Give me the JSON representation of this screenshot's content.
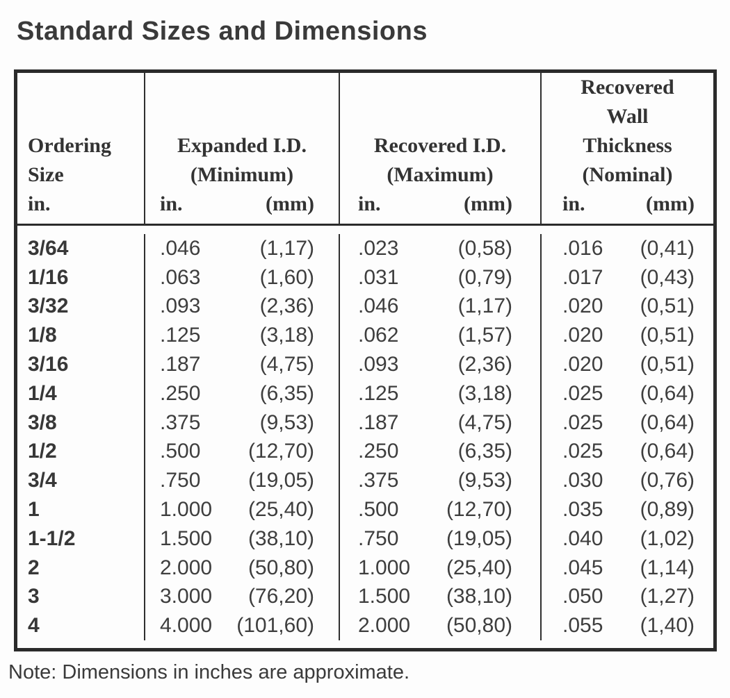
{
  "page": {
    "title": "Standard Sizes and Dimensions",
    "note": "Note: Dimensions in inches are approximate."
  },
  "colors": {
    "text": "#3a3a3a",
    "border": "#2b2b2b",
    "background": "#fdfdfd"
  },
  "table": {
    "columns": [
      {
        "id": "ordering-size",
        "title_lines": [
          "Ordering",
          "Size"
        ],
        "unit_in": "in.",
        "unit_mm": ""
      },
      {
        "id": "expanded-id",
        "title_lines": [
          "Expanded I.D.",
          "(Minimum)"
        ],
        "unit_in": "in.",
        "unit_mm": "(mm)"
      },
      {
        "id": "recovered-id",
        "title_lines": [
          "Recovered I.D.",
          "(Maximum)"
        ],
        "unit_in": "in.",
        "unit_mm": "(mm)"
      },
      {
        "id": "recovered-wall",
        "title_lines": [
          "Recovered",
          "Wall",
          "Thickness",
          "(Nominal)"
        ],
        "unit_in": "in.",
        "unit_mm": "(mm)"
      }
    ],
    "rows": [
      {
        "size": "3/64",
        "expanded_in": ".046",
        "expanded_mm": "(1,17)",
        "recovered_in": ".023",
        "recovered_mm": "(0,58)",
        "wall_in": ".016",
        "wall_mm": "(0,41)"
      },
      {
        "size": "1/16",
        "expanded_in": ".063",
        "expanded_mm": "(1,60)",
        "recovered_in": ".031",
        "recovered_mm": "(0,79)",
        "wall_in": ".017",
        "wall_mm": "(0,43)"
      },
      {
        "size": "3/32",
        "expanded_in": ".093",
        "expanded_mm": "(2,36)",
        "recovered_in": ".046",
        "recovered_mm": "(1,17)",
        "wall_in": ".020",
        "wall_mm": "(0,51)"
      },
      {
        "size": "1/8",
        "expanded_in": ".125",
        "expanded_mm": "(3,18)",
        "recovered_in": ".062",
        "recovered_mm": "(1,57)",
        "wall_in": ".020",
        "wall_mm": "(0,51)"
      },
      {
        "size": "3/16",
        "expanded_in": ".187",
        "expanded_mm": "(4,75)",
        "recovered_in": ".093",
        "recovered_mm": "(2,36)",
        "wall_in": ".020",
        "wall_mm": "(0,51)"
      },
      {
        "size": "1/4",
        "expanded_in": ".250",
        "expanded_mm": "(6,35)",
        "recovered_in": ".125",
        "recovered_mm": "(3,18)",
        "wall_in": ".025",
        "wall_mm": "(0,64)"
      },
      {
        "size": "3/8",
        "expanded_in": ".375",
        "expanded_mm": "(9,53)",
        "recovered_in": ".187",
        "recovered_mm": "(4,75)",
        "wall_in": ".025",
        "wall_mm": "(0,64)"
      },
      {
        "size": "1/2",
        "expanded_in": ".500",
        "expanded_mm": "(12,70)",
        "recovered_in": ".250",
        "recovered_mm": "(6,35)",
        "wall_in": ".025",
        "wall_mm": "(0,64)"
      },
      {
        "size": "3/4",
        "expanded_in": ".750",
        "expanded_mm": "(19,05)",
        "recovered_in": ".375",
        "recovered_mm": "(9,53)",
        "wall_in": ".030",
        "wall_mm": "(0,76)"
      },
      {
        "size": "1",
        "expanded_in": "1.000",
        "expanded_mm": "(25,40)",
        "recovered_in": ".500",
        "recovered_mm": "(12,70)",
        "wall_in": ".035",
        "wall_mm": "(0,89)"
      },
      {
        "size": "1-1/2",
        "expanded_in": "1.500",
        "expanded_mm": "(38,10)",
        "recovered_in": ".750",
        "recovered_mm": "(19,05)",
        "wall_in": ".040",
        "wall_mm": "(1,02)"
      },
      {
        "size": "2",
        "expanded_in": "2.000",
        "expanded_mm": "(50,80)",
        "recovered_in": "1.000",
        "recovered_mm": "(25,40)",
        "wall_in": ".045",
        "wall_mm": "(1,14)"
      },
      {
        "size": "3",
        "expanded_in": "3.000",
        "expanded_mm": "(76,20)",
        "recovered_in": "1.500",
        "recovered_mm": "(38,10)",
        "wall_in": ".050",
        "wall_mm": "(1,27)"
      },
      {
        "size": "4",
        "expanded_in": "4.000",
        "expanded_mm": "(101,60)",
        "recovered_in": "2.000",
        "recovered_mm": "(50,80)",
        "wall_in": ".055",
        "wall_mm": "(1,40)"
      }
    ]
  }
}
